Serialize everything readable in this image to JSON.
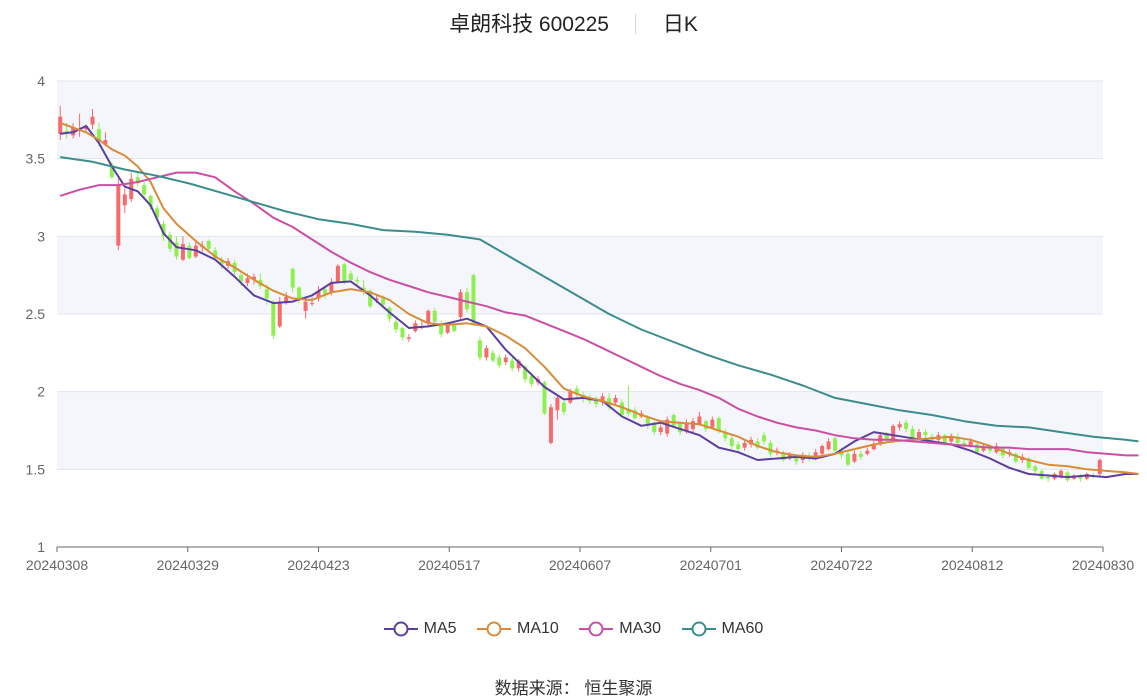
{
  "header": {
    "title": "卓朗科技 600225",
    "period": "日K"
  },
  "footer": {
    "source_label": "数据来源：",
    "source_name": "恒生聚源"
  },
  "chart_data": {
    "type": "candlestick",
    "title": "卓朗科技 600225",
    "subtitle": "日K",
    "ylim": [
      1,
      4
    ],
    "y_ticks": [
      "1",
      "1.5",
      "2",
      "2.5",
      "3",
      "3.5",
      "4"
    ],
    "x_ticks": [
      "20240308",
      "20240329",
      "20240423",
      "20240517",
      "20240607",
      "20240701",
      "20240722",
      "20240812",
      "20240830"
    ],
    "grid": true,
    "legend_position": "bottom",
    "colors": {
      "up": "#f46b6b",
      "down": "#8ef04f",
      "MA5": "#5c3ea1",
      "MA10": "#d98b3a",
      "MA30": "#c94fa4",
      "MA60": "#3b8d8c",
      "band": "#f4f6fb",
      "grid": "#dfe4ee"
    },
    "series": [
      {
        "name": "MA5",
        "x": [
          0,
          2,
          4,
          6,
          8,
          10,
          12,
          14,
          16,
          18,
          21,
          24,
          27,
          30,
          33,
          36,
          39,
          42,
          45,
          48,
          51,
          54,
          57,
          60,
          63,
          66,
          69,
          72,
          75,
          78,
          81,
          84,
          87,
          90,
          93,
          96,
          99,
          102,
          105,
          108,
          111,
          114,
          117,
          120,
          123,
          126,
          129,
          132,
          135,
          138,
          141,
          144,
          147,
          150,
          153,
          156,
          159,
          162,
          165,
          167
        ],
        "y": [
          3.66,
          3.67,
          3.71,
          3.6,
          3.45,
          3.32,
          3.29,
          3.2,
          3.02,
          2.93,
          2.91,
          2.85,
          2.74,
          2.62,
          2.57,
          2.58,
          2.62,
          2.7,
          2.71,
          2.62,
          2.51,
          2.41,
          2.42,
          2.44,
          2.47,
          2.42,
          2.27,
          2.15,
          2.03,
          1.95,
          1.96,
          1.94,
          1.84,
          1.78,
          1.8,
          1.76,
          1.72,
          1.64,
          1.61,
          1.56,
          1.57,
          1.58,
          1.57,
          1.6,
          1.68,
          1.74,
          1.72,
          1.7,
          1.68,
          1.66,
          1.62,
          1.57,
          1.51,
          1.47,
          1.46,
          1.45,
          1.46,
          1.45,
          1.47,
          1.47
        ]
      },
      {
        "name": "MA10",
        "x": [
          0,
          2,
          4,
          6,
          8,
          10,
          12,
          14,
          16,
          18,
          21,
          24,
          27,
          30,
          33,
          36,
          39,
          42,
          45,
          48,
          51,
          54,
          57,
          60,
          63,
          66,
          69,
          72,
          75,
          78,
          81,
          84,
          87,
          90,
          93,
          96,
          99,
          102,
          105,
          108,
          111,
          114,
          117,
          120,
          123,
          126,
          129,
          132,
          135,
          138,
          141,
          144,
          147,
          150,
          153,
          156,
          159,
          162,
          165,
          167
        ],
        "y": [
          3.73,
          3.7,
          3.67,
          3.62,
          3.56,
          3.52,
          3.45,
          3.35,
          3.18,
          3.08,
          2.97,
          2.87,
          2.8,
          2.72,
          2.65,
          2.6,
          2.59,
          2.64,
          2.66,
          2.64,
          2.59,
          2.5,
          2.44,
          2.43,
          2.44,
          2.42,
          2.36,
          2.28,
          2.16,
          2.02,
          1.97,
          1.94,
          1.9,
          1.85,
          1.81,
          1.8,
          1.79,
          1.75,
          1.71,
          1.65,
          1.61,
          1.59,
          1.58,
          1.6,
          1.63,
          1.66,
          1.68,
          1.69,
          1.7,
          1.71,
          1.69,
          1.65,
          1.6,
          1.56,
          1.53,
          1.52,
          1.5,
          1.49,
          1.48,
          1.47
        ]
      },
      {
        "name": "MA30",
        "x": [
          0,
          3,
          6,
          9,
          12,
          15,
          18,
          21,
          24,
          27,
          30,
          33,
          36,
          39,
          42,
          45,
          48,
          51,
          54,
          57,
          60,
          63,
          66,
          69,
          72,
          75,
          78,
          81,
          84,
          87,
          90,
          93,
          96,
          99,
          102,
          105,
          108,
          111,
          114,
          117,
          120,
          123,
          126,
          129,
          132,
          135,
          138,
          141,
          144,
          147,
          150,
          153,
          156,
          159,
          162,
          165,
          167
        ],
        "y": [
          3.26,
          3.3,
          3.33,
          3.33,
          3.35,
          3.38,
          3.41,
          3.41,
          3.38,
          3.29,
          3.21,
          3.12,
          3.06,
          2.98,
          2.9,
          2.83,
          2.77,
          2.72,
          2.68,
          2.64,
          2.61,
          2.58,
          2.55,
          2.51,
          2.49,
          2.44,
          2.39,
          2.34,
          2.28,
          2.22,
          2.16,
          2.1,
          2.05,
          2.01,
          1.96,
          1.89,
          1.84,
          1.8,
          1.77,
          1.75,
          1.72,
          1.7,
          1.69,
          1.69,
          1.68,
          1.67,
          1.66,
          1.65,
          1.64,
          1.64,
          1.63,
          1.63,
          1.63,
          1.61,
          1.6,
          1.59,
          1.59
        ]
      },
      {
        "name": "MA60",
        "x": [
          0,
          5,
          10,
          15,
          20,
          25,
          30,
          35,
          40,
          45,
          50,
          55,
          60,
          65,
          70,
          75,
          80,
          85,
          90,
          95,
          100,
          105,
          110,
          115,
          120,
          125,
          130,
          135,
          140,
          145,
          150,
          155,
          160,
          165,
          167
        ],
        "y": [
          3.51,
          3.48,
          3.43,
          3.39,
          3.34,
          3.28,
          3.22,
          3.16,
          3.11,
          3.08,
          3.04,
          3.03,
          3.01,
          2.98,
          2.86,
          2.74,
          2.62,
          2.5,
          2.4,
          2.32,
          2.24,
          2.17,
          2.11,
          2.04,
          1.96,
          1.92,
          1.88,
          1.85,
          1.81,
          1.78,
          1.77,
          1.74,
          1.71,
          1.69,
          1.68
        ]
      }
    ],
    "candles": [
      [
        3.66,
        3.77,
        3.84,
        3.62
      ],
      [
        3.68,
        3.67,
        3.73,
        3.63
      ],
      [
        3.65,
        3.7,
        3.73,
        3.63
      ],
      [
        3.68,
        3.69,
        3.79,
        3.64
      ],
      [
        3.69,
        3.71,
        3.72,
        3.67
      ],
      [
        3.72,
        3.77,
        3.82,
        3.69
      ],
      [
        3.69,
        3.62,
        3.73,
        3.58
      ],
      [
        3.59,
        3.62,
        3.67,
        3.58
      ],
      [
        3.46,
        3.38,
        3.48,
        3.37
      ],
      [
        2.94,
        3.33,
        3.37,
        2.91
      ],
      [
        3.2,
        3.27,
        3.31,
        3.15
      ],
      [
        3.24,
        3.37,
        3.41,
        3.22
      ],
      [
        3.38,
        3.34,
        3.41,
        3.32
      ],
      [
        3.33,
        3.27,
        3.35,
        3.25
      ],
      [
        3.26,
        3.19,
        3.27,
        3.17
      ],
      [
        3.18,
        3.12,
        3.2,
        3.1
      ],
      [
        3.08,
        3.0,
        3.1,
        2.97
      ],
      [
        3.01,
        2.92,
        3.03,
        2.9
      ],
      [
        2.96,
        2.87,
        3.0,
        2.85
      ],
      [
        2.85,
        2.95,
        3.0,
        2.84
      ],
      [
        2.94,
        2.86,
        2.96,
        2.85
      ],
      [
        2.87,
        2.94,
        2.97,
        2.86
      ],
      [
        2.93,
        2.94,
        2.97,
        2.9
      ],
      [
        2.97,
        2.92,
        2.98,
        2.9
      ],
      [
        2.91,
        2.86,
        2.93,
        2.84
      ],
      [
        2.85,
        2.82,
        2.87,
        2.79
      ],
      [
        2.81,
        2.84,
        2.86,
        2.79
      ],
      [
        2.83,
        2.77,
        2.85,
        2.75
      ],
      [
        2.75,
        2.71,
        2.78,
        2.68
      ],
      [
        2.7,
        2.73,
        2.76,
        2.68
      ],
      [
        2.72,
        2.74,
        2.76,
        2.69
      ],
      [
        2.72,
        2.68,
        2.76,
        2.66
      ],
      [
        2.66,
        2.6,
        2.69,
        2.56
      ],
      [
        2.57,
        2.36,
        2.59,
        2.34
      ],
      [
        2.42,
        2.58,
        2.61,
        2.41
      ],
      [
        2.58,
        2.61,
        2.64,
        2.56
      ],
      [
        2.79,
        2.67,
        2.8,
        2.64
      ],
      [
        2.67,
        2.6,
        2.68,
        2.57
      ],
      [
        2.52,
        2.58,
        2.6,
        2.47
      ],
      [
        2.57,
        2.57,
        2.61,
        2.55
      ],
      [
        2.6,
        2.65,
        2.68,
        2.58
      ],
      [
        2.66,
        2.63,
        2.68,
        2.6
      ],
      [
        2.64,
        2.7,
        2.73,
        2.62
      ],
      [
        2.71,
        2.81,
        2.82,
        2.7
      ],
      [
        2.82,
        2.71,
        2.83,
        2.69
      ],
      [
        2.76,
        2.72,
        2.78,
        2.7
      ],
      [
        2.72,
        2.71,
        2.74,
        2.68
      ],
      [
        2.67,
        2.64,
        2.72,
        2.62
      ],
      [
        2.65,
        2.55,
        2.66,
        2.54
      ],
      [
        2.59,
        2.6,
        2.62,
        2.57
      ],
      [
        2.6,
        2.56,
        2.62,
        2.54
      ],
      [
        2.54,
        2.47,
        2.55,
        2.45
      ],
      [
        2.45,
        2.4,
        2.47,
        2.38
      ],
      [
        2.41,
        2.35,
        2.42,
        2.33
      ],
      [
        2.34,
        2.35,
        2.37,
        2.32
      ],
      [
        2.39,
        2.44,
        2.46,
        2.38
      ],
      [
        2.42,
        2.42,
        2.46,
        2.4
      ],
      [
        2.44,
        2.52,
        2.53,
        2.42
      ],
      [
        2.52,
        2.45,
        2.54,
        2.43
      ],
      [
        2.44,
        2.37,
        2.46,
        2.35
      ],
      [
        2.38,
        2.43,
        2.44,
        2.37
      ],
      [
        2.43,
        2.39,
        2.45,
        2.38
      ],
      [
        2.48,
        2.64,
        2.66,
        2.46
      ],
      [
        2.64,
        2.53,
        2.67,
        2.51
      ],
      [
        2.75,
        2.43,
        2.76,
        2.42
      ],
      [
        2.33,
        2.22,
        2.35,
        2.2
      ],
      [
        2.22,
        2.28,
        2.3,
        2.2
      ],
      [
        2.25,
        2.2,
        2.27,
        2.19
      ],
      [
        2.22,
        2.17,
        2.24,
        2.15
      ],
      [
        2.19,
        2.22,
        2.24,
        2.17
      ],
      [
        2.2,
        2.15,
        2.22,
        2.13
      ],
      [
        2.15,
        2.2,
        2.21,
        2.13
      ],
      [
        2.16,
        2.08,
        2.17,
        2.06
      ],
      [
        2.1,
        2.05,
        2.12,
        2.03
      ],
      [
        2.06,
        2.08,
        2.1,
        2.04
      ],
      [
        2.06,
        1.86,
        2.07,
        1.85
      ],
      [
        1.67,
        1.9,
        1.92,
        1.66
      ],
      [
        1.88,
        1.96,
        1.98,
        1.82
      ],
      [
        1.93,
        1.87,
        1.94,
        1.85
      ],
      [
        1.93,
        2.0,
        2.02,
        1.92
      ],
      [
        2.02,
        1.98,
        2.04,
        1.96
      ],
      [
        1.98,
        1.96,
        2.0,
        1.93
      ],
      [
        1.96,
        1.94,
        1.98,
        1.92
      ],
      [
        1.95,
        1.92,
        1.97,
        1.9
      ],
      [
        1.93,
        1.97,
        1.99,
        1.91
      ],
      [
        1.96,
        1.9,
        1.99,
        1.88
      ],
      [
        1.93,
        1.96,
        1.98,
        1.91
      ],
      [
        1.93,
        1.85,
        1.95,
        1.84
      ],
      [
        1.89,
        1.86,
        2.04,
        1.84
      ],
      [
        1.88,
        1.83,
        1.9,
        1.82
      ],
      [
        1.84,
        1.86,
        1.88,
        1.83
      ],
      [
        1.84,
        1.78,
        1.85,
        1.76
      ],
      [
        1.8,
        1.74,
        1.81,
        1.72
      ],
      [
        1.74,
        1.77,
        1.79,
        1.72
      ],
      [
        1.73,
        1.82,
        1.84,
        1.71
      ],
      [
        1.85,
        1.78,
        1.86,
        1.77
      ],
      [
        1.8,
        1.74,
        1.81,
        1.72
      ],
      [
        1.75,
        1.8,
        1.82,
        1.73
      ],
      [
        1.76,
        1.81,
        1.83,
        1.74
      ],
      [
        1.79,
        1.84,
        1.87,
        1.78
      ],
      [
        1.81,
        1.76,
        1.82,
        1.74
      ],
      [
        1.77,
        1.82,
        1.84,
        1.76
      ],
      [
        1.83,
        1.75,
        1.84,
        1.73
      ],
      [
        1.74,
        1.7,
        1.76,
        1.68
      ],
      [
        1.7,
        1.65,
        1.72,
        1.63
      ],
      [
        1.66,
        1.63,
        1.68,
        1.61
      ],
      [
        1.64,
        1.67,
        1.69,
        1.62
      ],
      [
        1.66,
        1.69,
        1.71,
        1.64
      ],
      [
        1.68,
        1.64,
        1.7,
        1.63
      ],
      [
        1.72,
        1.68,
        1.74,
        1.66
      ],
      [
        1.67,
        1.6,
        1.69,
        1.58
      ],
      [
        1.61,
        1.62,
        1.64,
        1.59
      ],
      [
        1.6,
        1.56,
        1.62,
        1.55
      ],
      [
        1.58,
        1.6,
        1.61,
        1.56
      ],
      [
        1.58,
        1.55,
        1.59,
        1.53
      ],
      [
        1.56,
        1.59,
        1.61,
        1.54
      ],
      [
        1.58,
        1.57,
        1.61,
        1.55
      ],
      [
        1.57,
        1.61,
        1.63,
        1.56
      ],
      [
        1.6,
        1.65,
        1.66,
        1.59
      ],
      [
        1.63,
        1.68,
        1.7,
        1.62
      ],
      [
        1.7,
        1.62,
        1.71,
        1.6
      ],
      [
        1.62,
        1.59,
        1.64,
        1.57
      ],
      [
        1.6,
        1.53,
        1.62,
        1.52
      ],
      [
        1.55,
        1.6,
        1.62,
        1.54
      ],
      [
        1.6,
        1.58,
        1.62,
        1.56
      ],
      [
        1.6,
        1.62,
        1.64,
        1.59
      ],
      [
        1.63,
        1.66,
        1.68,
        1.62
      ],
      [
        1.66,
        1.72,
        1.74,
        1.65
      ],
      [
        1.73,
        1.69,
        1.74,
        1.67
      ],
      [
        1.68,
        1.78,
        1.79,
        1.67
      ],
      [
        1.77,
        1.79,
        1.81,
        1.75
      ],
      [
        1.8,
        1.76,
        1.82,
        1.74
      ],
      [
        1.76,
        1.69,
        1.78,
        1.68
      ],
      [
        1.7,
        1.74,
        1.76,
        1.69
      ],
      [
        1.74,
        1.72,
        1.76,
        1.7
      ],
      [
        1.71,
        1.69,
        1.73,
        1.68
      ],
      [
        1.69,
        1.72,
        1.74,
        1.67
      ],
      [
        1.72,
        1.67,
        1.73,
        1.65
      ],
      [
        1.68,
        1.71,
        1.73,
        1.66
      ],
      [
        1.71,
        1.67,
        1.73,
        1.65
      ],
      [
        1.67,
        1.65,
        1.69,
        1.63
      ],
      [
        1.65,
        1.68,
        1.7,
        1.64
      ],
      [
        1.66,
        1.61,
        1.67,
        1.6
      ],
      [
        1.62,
        1.64,
        1.66,
        1.61
      ],
      [
        1.64,
        1.62,
        1.66,
        1.6
      ],
      [
        1.61,
        1.65,
        1.67,
        1.6
      ],
      [
        1.64,
        1.59,
        1.65,
        1.57
      ],
      [
        1.6,
        1.61,
        1.63,
        1.58
      ],
      [
        1.6,
        1.55,
        1.61,
        1.54
      ],
      [
        1.56,
        1.58,
        1.6,
        1.54
      ],
      [
        1.57,
        1.51,
        1.58,
        1.5
      ],
      [
        1.52,
        1.49,
        1.53,
        1.47
      ],
      [
        1.49,
        1.44,
        1.5,
        1.43
      ],
      [
        1.45,
        1.44,
        1.47,
        1.42
      ],
      [
        1.44,
        1.47,
        1.48,
        1.43
      ],
      [
        1.46,
        1.49,
        1.5,
        1.44
      ],
      [
        1.48,
        1.43,
        1.49,
        1.42
      ],
      [
        1.44,
        1.46,
        1.47,
        1.43
      ],
      [
        1.46,
        1.44,
        1.47,
        1.42
      ],
      [
        1.44,
        1.47,
        1.48,
        1.43
      ],
      [
        1.46,
        1.45,
        1.48,
        1.44
      ],
      [
        1.47,
        1.56,
        1.57,
        1.46
      ]
    ]
  }
}
